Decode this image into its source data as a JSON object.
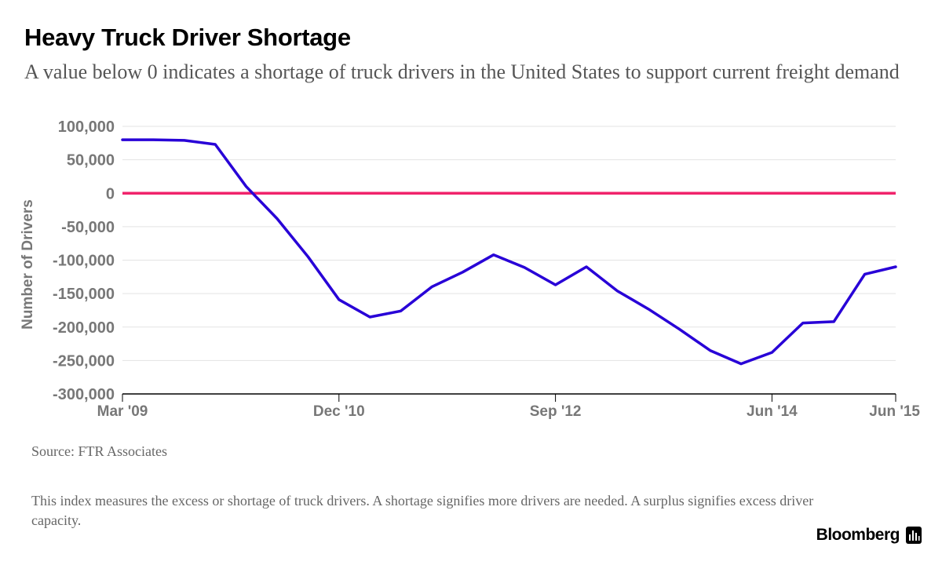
{
  "header": {
    "title": "Heavy Truck Driver Shortage",
    "subtitle": "A value below 0 indicates a shortage of truck drivers in the United States to support current freight demand"
  },
  "chart_data": {
    "type": "line",
    "title": "Heavy Truck Driver Shortage",
    "ylabel": "Number of Drivers",
    "xlabel": "",
    "x": [
      "Mar '09",
      "Jun '09",
      "Sep '09",
      "Dec '09",
      "Mar '10",
      "Jun '10",
      "Sep '10",
      "Dec '10",
      "Mar '11",
      "Jun '11",
      "Sep '11",
      "Dec '11",
      "Mar '12",
      "Jun '12",
      "Sep '12",
      "Dec '12",
      "Mar '13",
      "Jun '13",
      "Sep '13",
      "Dec '13",
      "Mar '14",
      "Jun '14",
      "Sep '14",
      "Dec '14",
      "Mar '15",
      "Jun '15"
    ],
    "x_tick_labels": [
      "Mar '09",
      "Dec '10",
      "Sep '12",
      "Jun '14",
      "Jun '15"
    ],
    "series": [
      {
        "name": "",
        "color": "#2800d7",
        "values": [
          80000,
          80000,
          79000,
          73000,
          10000,
          -38000,
          -95000,
          -159000,
          -185000,
          -176000,
          -140000,
          -118000,
          -92000,
          -111000,
          -137000,
          -110000,
          -146000,
          -173000,
          -203000,
          -235000,
          -255000,
          -238000,
          -194000,
          -192000,
          -121000,
          -110000
        ]
      }
    ],
    "reference_line": {
      "value": 0,
      "color": "#f0236b"
    },
    "ylim": [
      -300000,
      100000
    ],
    "y_ticks": [
      100000,
      50000,
      0,
      -50000,
      -100000,
      -150000,
      -200000,
      -250000,
      -300000
    ],
    "y_tick_labels": [
      "100,000",
      "50,000",
      "0",
      "-50,000",
      "-100,000",
      "-150,000",
      "-200,000",
      "-250,000",
      "-300,000"
    ],
    "grid": true,
    "legend": "none"
  },
  "footer": {
    "source": "Source: FTR Associates",
    "note": "This index measures the excess or shortage of truck drivers. A shortage signifies more drivers are needed. A surplus signifies excess driver capacity.",
    "brand": "Bloomberg",
    "brand_icon": "bloomberg-chart-icon"
  }
}
